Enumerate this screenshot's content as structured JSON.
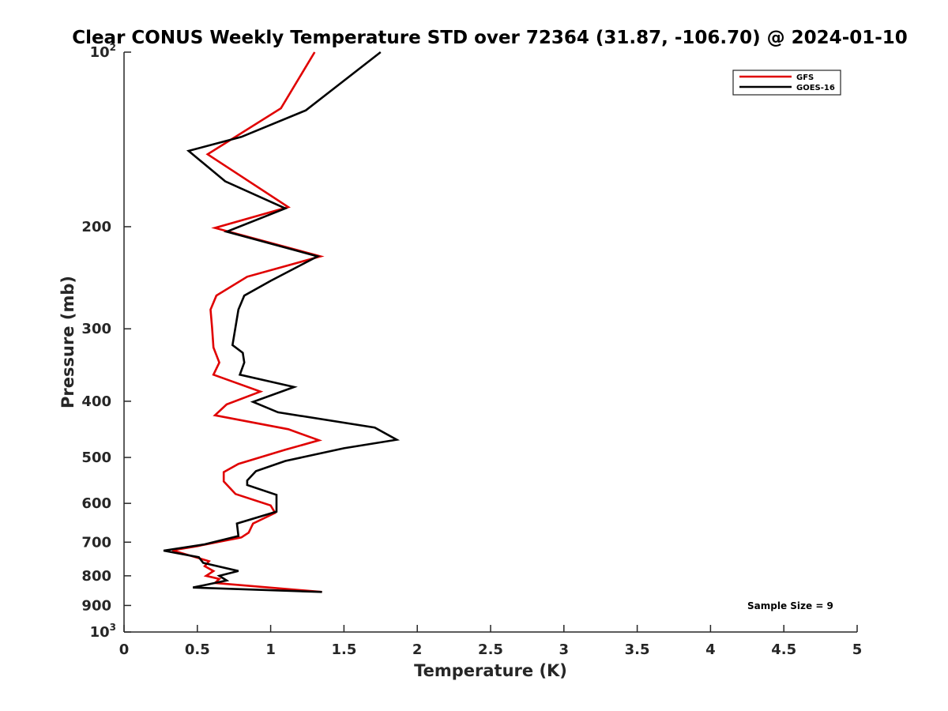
{
  "chart_data": {
    "type": "line",
    "title": "Clear CONUS Weekly Temperature STD over 72364 (31.87, -106.70) @ 2024-01-10",
    "xlabel": "Temperature (K)",
    "ylabel": "Pressure (mb)",
    "xlim": [
      0,
      5
    ],
    "ylim": [
      100,
      1000
    ],
    "y_scale": "log",
    "y_reversed": true,
    "x_ticks": [
      "0",
      "0.5",
      "1",
      "1.5",
      "2",
      "2.5",
      "3",
      "3.5",
      "4",
      "4.5",
      "5"
    ],
    "x_tick_values": [
      0,
      0.5,
      1,
      1.5,
      2,
      2.5,
      3,
      3.5,
      4,
      4.5,
      5
    ],
    "y_ticks": [
      {
        "value": 100,
        "base": "10",
        "exp": "2"
      },
      {
        "value": 200,
        "label": "200"
      },
      {
        "value": 300,
        "label": "300"
      },
      {
        "value": 400,
        "label": "400"
      },
      {
        "value": 500,
        "label": "500"
      },
      {
        "value": 600,
        "label": "600"
      },
      {
        "value": 700,
        "label": "700"
      },
      {
        "value": 800,
        "label": "800"
      },
      {
        "value": 900,
        "label": "900"
      },
      {
        "value": 1000,
        "base": "10",
        "exp": "3"
      }
    ],
    "grid": false,
    "legend_position": "top-right",
    "annotation": "Sample Size = 9",
    "series": [
      {
        "name": "GFS",
        "color": "#e00000",
        "points": [
          [
            1.3,
            100
          ],
          [
            1.07,
            125
          ],
          [
            0.57,
            150
          ],
          [
            1.12,
            185
          ],
          [
            0.62,
            201
          ],
          [
            1.34,
            225
          ],
          [
            0.84,
            244
          ],
          [
            0.63,
            263
          ],
          [
            0.59,
            278
          ],
          [
            0.6,
            298
          ],
          [
            0.61,
            323
          ],
          [
            0.65,
            343
          ],
          [
            0.61,
            360
          ],
          [
            0.93,
            385
          ],
          [
            0.7,
            405
          ],
          [
            0.62,
            423
          ],
          [
            1.12,
            447
          ],
          [
            1.33,
            467
          ],
          [
            1.1,
            485
          ],
          [
            0.78,
            513
          ],
          [
            0.68,
            530
          ],
          [
            0.68,
            550
          ],
          [
            0.76,
            578
          ],
          [
            1.0,
            605
          ],
          [
            1.03,
            623
          ],
          [
            0.88,
            650
          ],
          [
            0.85,
            674
          ],
          [
            0.8,
            687
          ],
          [
            0.5,
            711
          ],
          [
            0.33,
            723
          ],
          [
            0.58,
            755
          ],
          [
            0.55,
            770
          ],
          [
            0.61,
            785
          ],
          [
            0.56,
            800
          ],
          [
            0.65,
            810
          ],
          [
            0.62,
            823
          ],
          [
            1.35,
            853
          ]
        ]
      },
      {
        "name": "GOES-16",
        "color": "#000000",
        "points": [
          [
            1.75,
            100
          ],
          [
            1.24,
            126
          ],
          [
            0.8,
            140
          ],
          [
            0.44,
            148
          ],
          [
            0.69,
            167
          ],
          [
            1.1,
            186
          ],
          [
            0.7,
            204
          ],
          [
            1.32,
            225
          ],
          [
            1.0,
            248
          ],
          [
            0.82,
            263
          ],
          [
            0.78,
            278
          ],
          [
            0.76,
            298
          ],
          [
            0.74,
            320
          ],
          [
            0.81,
            330
          ],
          [
            0.82,
            343
          ],
          [
            0.79,
            360
          ],
          [
            1.16,
            378
          ],
          [
            0.88,
            401
          ],
          [
            1.05,
            418
          ],
          [
            1.71,
            444
          ],
          [
            1.86,
            466
          ],
          [
            1.5,
            482
          ],
          [
            1.1,
            507
          ],
          [
            0.9,
            528
          ],
          [
            0.84,
            548
          ],
          [
            0.84,
            558
          ],
          [
            1.04,
            580
          ],
          [
            1.04,
            620
          ],
          [
            0.77,
            650
          ],
          [
            0.78,
            683
          ],
          [
            0.55,
            706
          ],
          [
            0.27,
            724
          ],
          [
            0.51,
            743
          ],
          [
            0.54,
            760
          ],
          [
            0.78,
            785
          ],
          [
            0.65,
            800
          ],
          [
            0.7,
            815
          ],
          [
            0.55,
            830
          ],
          [
            0.47,
            838
          ],
          [
            1.35,
            853
          ]
        ]
      }
    ]
  }
}
